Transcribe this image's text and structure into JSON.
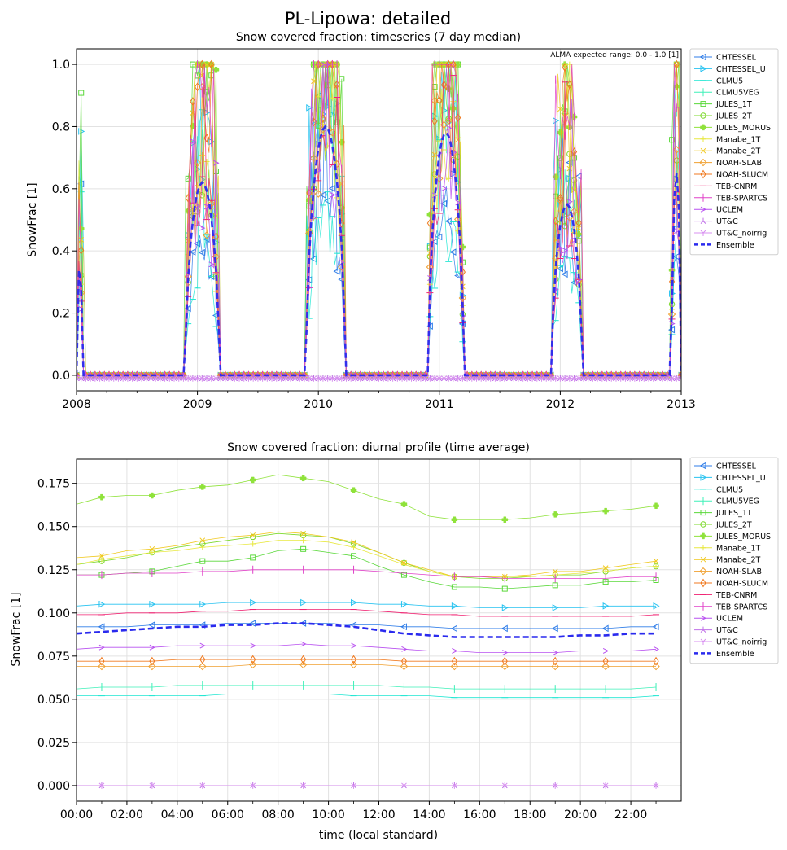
{
  "figure": {
    "title": "PL-Lipowa: detailed"
  },
  "colors": {
    "CHTESSEL": "#2f7de8",
    "CHTESSEL_U": "#26c2f0",
    "CLMU5": "#1ee6d2",
    "CLMU5VEG": "#3ef0b8",
    "JULES_1T": "#5ad83a",
    "JULES_2T": "#7bd82a",
    "JULES_MORUS": "#8fe23a",
    "Manabe_1T": "#e8e840",
    "Manabe_2T": "#f0c81e",
    "NOAH-SLAB": "#f0a030",
    "NOAH-SLUCM": "#f07a20",
    "TEB-CNRM": "#f02070",
    "TEB-SPARTCS": "#e040c8",
    "UCLEM": "#b850f0",
    "UT&C": "#c070e8",
    "UT&C_noirrig": "#d890f0",
    "Ensemble": "#2a2aee"
  },
  "chart_data": [
    {
      "type": "line",
      "title": "Snow covered fraction: timeseries (7 day median)",
      "annotation": "ALMA expected range: 0.0 - 1.0 [1]",
      "xlabel": "",
      "ylabel": "SnowFrac [1]",
      "xlim": [
        2008,
        2013
      ],
      "ylim": [
        -0.05,
        1.05
      ],
      "xticks": [
        "2008",
        "2009",
        "2010",
        "2011",
        "2012",
        "2013"
      ],
      "yticks": [
        "0.0",
        "0.2",
        "0.4",
        "0.6",
        "0.8",
        "1.0"
      ],
      "grid": true,
      "legend": "outside-right",
      "legend_entries": [
        "CHTESSEL",
        "CHTESSEL_U",
        "CLMU5",
        "CLMU5VEG",
        "JULES_1T",
        "JULES_2T",
        "JULES_MORUS",
        "Manabe_1T",
        "Manabe_2T",
        "NOAH-SLAB",
        "NOAH-SLUCM",
        "TEB-CNRM",
        "TEB-SPARTCS",
        "UCLEM",
        "UT&C",
        "UT&C_noirrig",
        "Ensemble"
      ],
      "winters": [
        {
          "start": 2008.0,
          "end": 2008.05,
          "peak": 0.35
        },
        {
          "start": 2008.9,
          "end": 2009.18,
          "peak": 0.62
        },
        {
          "start": 2009.9,
          "end": 2010.22,
          "peak": 0.8
        },
        {
          "start": 2010.91,
          "end": 2011.2,
          "peak": 0.78
        },
        {
          "start": 2011.93,
          "end": 2012.18,
          "peak": 0.55
        },
        {
          "start": 2012.92,
          "end": 2013.0,
          "peak": 0.65
        }
      ]
    },
    {
      "type": "line",
      "title": "Snow covered fraction: diurnal profile (time average)",
      "xlabel": "time (local standard)",
      "ylabel": "SnowFrac [1]",
      "xlim": [
        0,
        24
      ],
      "ylim": [
        -0.009,
        0.189
      ],
      "xticks": [
        "00:00",
        "02:00",
        "04:00",
        "06:00",
        "08:00",
        "10:00",
        "12:00",
        "14:00",
        "16:00",
        "18:00",
        "20:00",
        "22:00"
      ],
      "yticks": [
        "0.000",
        "0.025",
        "0.050",
        "0.075",
        "0.100",
        "0.125",
        "0.150",
        "0.175"
      ],
      "grid": true,
      "legend": "outside-right",
      "hours": [
        0,
        1,
        2,
        3,
        4,
        5,
        6,
        7,
        8,
        9,
        10,
        11,
        12,
        13,
        14,
        15,
        16,
        17,
        18,
        19,
        20,
        21,
        22,
        23
      ],
      "series": [
        {
          "name": "CHTESSEL",
          "values": [
            0.092,
            0.092,
            0.092,
            0.093,
            0.093,
            0.093,
            0.094,
            0.094,
            0.094,
            0.094,
            0.094,
            0.093,
            0.093,
            0.092,
            0.092,
            0.091,
            0.091,
            0.091,
            0.091,
            0.091,
            0.091,
            0.091,
            0.092,
            0.092
          ]
        },
        {
          "name": "CHTESSEL_U",
          "values": [
            0.104,
            0.105,
            0.105,
            0.105,
            0.105,
            0.105,
            0.106,
            0.106,
            0.106,
            0.106,
            0.106,
            0.106,
            0.105,
            0.105,
            0.104,
            0.104,
            0.103,
            0.103,
            0.103,
            0.103,
            0.103,
            0.104,
            0.104,
            0.104
          ]
        },
        {
          "name": "CLMU5",
          "values": [
            0.052,
            0.052,
            0.052,
            0.052,
            0.052,
            0.052,
            0.053,
            0.053,
            0.053,
            0.053,
            0.053,
            0.052,
            0.052,
            0.052,
            0.052,
            0.051,
            0.051,
            0.051,
            0.051,
            0.051,
            0.051,
            0.051,
            0.051,
            0.052
          ]
        },
        {
          "name": "CLMU5VEG",
          "values": [
            0.056,
            0.057,
            0.057,
            0.057,
            0.058,
            0.058,
            0.058,
            0.058,
            0.058,
            0.058,
            0.058,
            0.058,
            0.058,
            0.057,
            0.057,
            0.056,
            0.056,
            0.056,
            0.056,
            0.056,
            0.056,
            0.056,
            0.056,
            0.057
          ]
        },
        {
          "name": "JULES_1T",
          "values": [
            0.122,
            0.122,
            0.123,
            0.124,
            0.127,
            0.13,
            0.13,
            0.132,
            0.136,
            0.137,
            0.135,
            0.133,
            0.127,
            0.122,
            0.118,
            0.115,
            0.115,
            0.114,
            0.115,
            0.116,
            0.116,
            0.118,
            0.118,
            0.119
          ]
        },
        {
          "name": "JULES_2T",
          "values": [
            0.128,
            0.13,
            0.132,
            0.135,
            0.138,
            0.14,
            0.142,
            0.144,
            0.146,
            0.145,
            0.144,
            0.14,
            0.135,
            0.129,
            0.124,
            0.121,
            0.12,
            0.12,
            0.121,
            0.122,
            0.122,
            0.124,
            0.126,
            0.127
          ]
        },
        {
          "name": "JULES_MORUS",
          "values": [
            0.163,
            0.167,
            0.168,
            0.168,
            0.171,
            0.173,
            0.174,
            0.177,
            0.18,
            0.178,
            0.176,
            0.171,
            0.166,
            0.163,
            0.156,
            0.154,
            0.154,
            0.154,
            0.155,
            0.157,
            0.158,
            0.159,
            0.16,
            0.162
          ]
        },
        {
          "name": "Manabe_1T",
          "values": [
            0.128,
            0.131,
            0.133,
            0.135,
            0.136,
            0.138,
            0.139,
            0.14,
            0.142,
            0.142,
            0.141,
            0.138,
            0.133,
            0.128,
            0.124,
            0.121,
            0.121,
            0.121,
            0.121,
            0.122,
            0.123,
            0.124,
            0.126,
            0.127
          ]
        },
        {
          "name": "Manabe_2T",
          "values": [
            0.132,
            0.133,
            0.136,
            0.137,
            0.139,
            0.142,
            0.144,
            0.145,
            0.147,
            0.146,
            0.144,
            0.141,
            0.135,
            0.129,
            0.125,
            0.121,
            0.121,
            0.121,
            0.122,
            0.124,
            0.124,
            0.126,
            0.128,
            0.13
          ]
        },
        {
          "name": "NOAH-SLAB",
          "values": [
            0.069,
            0.069,
            0.069,
            0.069,
            0.069,
            0.069,
            0.069,
            0.07,
            0.07,
            0.07,
            0.07,
            0.07,
            0.07,
            0.069,
            0.069,
            0.069,
            0.069,
            0.069,
            0.069,
            0.069,
            0.069,
            0.069,
            0.069,
            0.069
          ]
        },
        {
          "name": "NOAH-SLUCM",
          "values": [
            0.072,
            0.072,
            0.072,
            0.072,
            0.073,
            0.073,
            0.073,
            0.073,
            0.073,
            0.073,
            0.073,
            0.073,
            0.073,
            0.072,
            0.072,
            0.072,
            0.072,
            0.072,
            0.072,
            0.072,
            0.072,
            0.072,
            0.072,
            0.072
          ]
        },
        {
          "name": "TEB-CNRM",
          "values": [
            0.099,
            0.099,
            0.1,
            0.1,
            0.1,
            0.101,
            0.101,
            0.102,
            0.102,
            0.102,
            0.102,
            0.102,
            0.101,
            0.1,
            0.099,
            0.099,
            0.098,
            0.098,
            0.098,
            0.098,
            0.098,
            0.098,
            0.098,
            0.099
          ]
        },
        {
          "name": "TEB-SPARTCS",
          "values": [
            0.122,
            0.122,
            0.123,
            0.123,
            0.123,
            0.124,
            0.124,
            0.125,
            0.125,
            0.125,
            0.125,
            0.125,
            0.124,
            0.123,
            0.122,
            0.121,
            0.121,
            0.12,
            0.12,
            0.12,
            0.12,
            0.12,
            0.121,
            0.121
          ]
        },
        {
          "name": "UCLEM",
          "values": [
            0.079,
            0.08,
            0.08,
            0.08,
            0.081,
            0.081,
            0.081,
            0.081,
            0.081,
            0.082,
            0.081,
            0.081,
            0.08,
            0.079,
            0.078,
            0.078,
            0.077,
            0.077,
            0.077,
            0.077,
            0.078,
            0.078,
            0.078,
            0.079
          ]
        },
        {
          "name": "UT&C",
          "values": [
            0.0,
            0.0,
            0.0,
            0.0,
            0.0,
            0.0,
            0.0,
            0.0,
            0.0,
            0.0,
            0.0,
            0.0,
            0.0,
            0.0,
            0.0,
            0.0,
            0.0,
            0.0,
            0.0,
            0.0,
            0.0,
            0.0,
            0.0,
            0.0
          ]
        },
        {
          "name": "UT&C_noirrig",
          "values": [
            0.0,
            0.0,
            0.0,
            0.0,
            0.0,
            0.0,
            0.0,
            0.0,
            0.0,
            0.0,
            0.0,
            0.0,
            0.0,
            0.0,
            0.0,
            0.0,
            0.0,
            0.0,
            0.0,
            0.0,
            0.0,
            0.0,
            0.0,
            0.0
          ]
        },
        {
          "name": "Ensemble",
          "values": [
            0.088,
            0.089,
            0.09,
            0.091,
            0.092,
            0.092,
            0.093,
            0.093,
            0.094,
            0.094,
            0.093,
            0.092,
            0.09,
            0.088,
            0.087,
            0.086,
            0.086,
            0.086,
            0.086,
            0.086,
            0.087,
            0.087,
            0.088,
            0.088
          ]
        }
      ]
    }
  ]
}
